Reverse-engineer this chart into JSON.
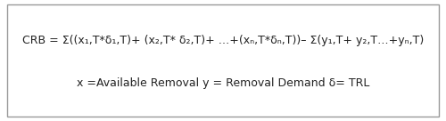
{
  "line1": "CRB = Σ((x₁,T*δ₁,T)+ (x₂,T* δ₂,T)+ …+(xₙ,T*δₙ,T))– Σ(y₁,T+ y₂,T…+yₙ,T)",
  "line2": "x =Available Removal y = Removal Demand δ= TRL",
  "bg_color": "#ffffff",
  "border_color": "#999999",
  "text_color": "#222222",
  "font_size_line1": 9.0,
  "font_size_line2": 9.0,
  "fig_width": 5.0,
  "fig_height": 1.36,
  "dpi": 100
}
